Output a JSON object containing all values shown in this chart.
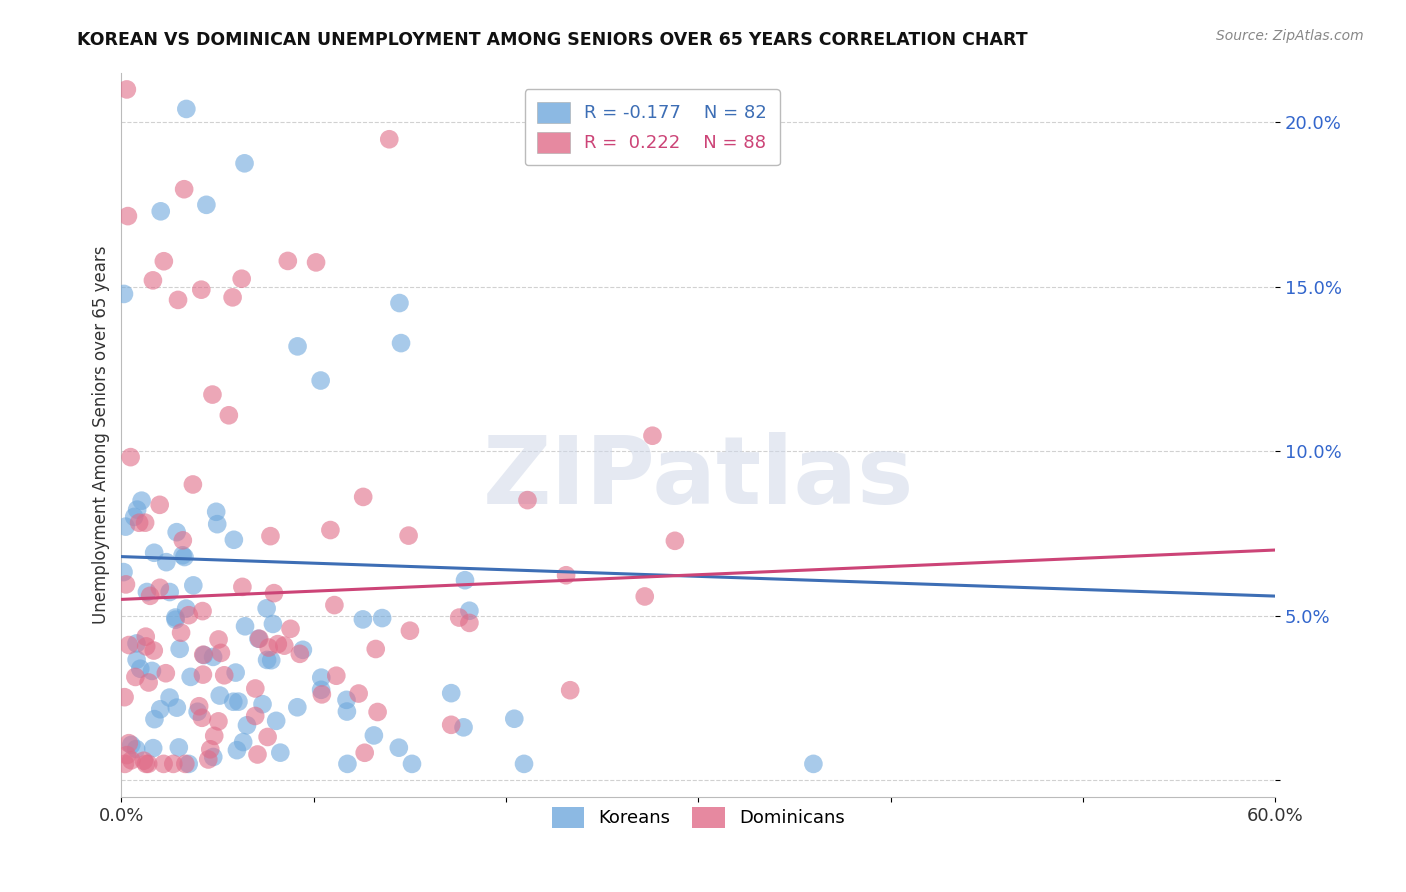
{
  "title": "KOREAN VS DOMINICAN UNEMPLOYMENT AMONG SENIORS OVER 65 YEARS CORRELATION CHART",
  "source": "Source: ZipAtlas.com",
  "ylabel": "Unemployment Among Seniors over 65 years",
  "yticks": [
    0.0,
    0.05,
    0.1,
    0.15,
    0.2
  ],
  "ytick_labels": [
    "",
    "5.0%",
    "10.0%",
    "15.0%",
    "20.0%"
  ],
  "xlim": [
    0.0,
    0.6
  ],
  "ylim": [
    -0.005,
    0.215
  ],
  "korean_R": -0.177,
  "korean_N": 82,
  "dominican_R": 0.222,
  "dominican_N": 88,
  "korean_color": "#6fa8dc",
  "dominican_color": "#e06c88",
  "korean_line_color": "#3d6eb5",
  "dominican_line_color": "#cc4477",
  "watermark_text": "ZIPatlas",
  "background_color": "#ffffff",
  "grid_color": "#cccccc",
  "korean_seed": 777,
  "dominican_seed": 555
}
